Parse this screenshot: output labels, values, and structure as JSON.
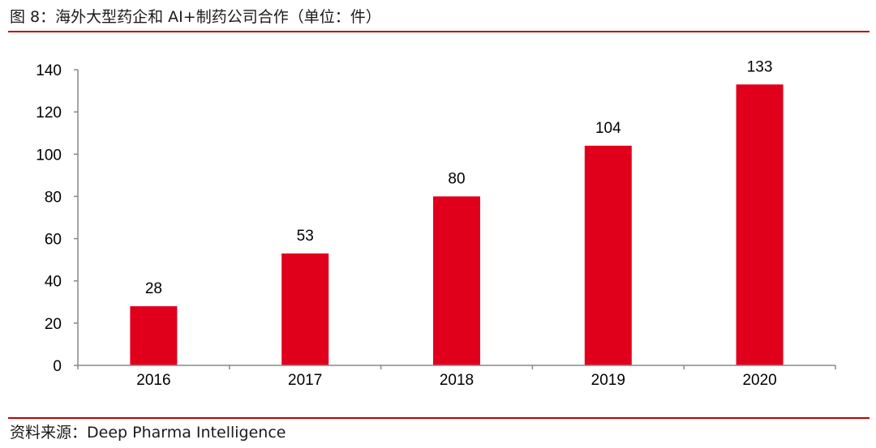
{
  "header": {
    "title": "图 8：海外大型药企和 AI+制药公司合作（单位：件）"
  },
  "footer": {
    "source": "资料来源：Deep Pharma Intelligence"
  },
  "colors": {
    "bar": "#e0001b",
    "rule": "#c00000",
    "axis": "#888888"
  },
  "chart_data": {
    "type": "bar",
    "title": "",
    "xlabel": "",
    "ylabel": "",
    "categories": [
      "2016",
      "2017",
      "2018",
      "2019",
      "2020"
    ],
    "values": [
      28,
      53,
      80,
      104,
      133
    ],
    "ylim": [
      0,
      140
    ],
    "yticks": [
      0,
      20,
      40,
      60,
      80,
      100,
      120,
      140
    ],
    "grid": false,
    "legend": "none",
    "data_labels": true
  }
}
